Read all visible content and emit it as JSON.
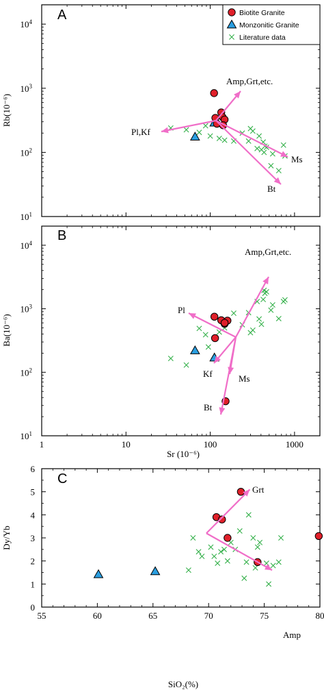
{
  "colors": {
    "biotite": "#e0202a",
    "monzonitic": "#2a9ee0",
    "literature": "#34b04a",
    "vector": "#f06ec8",
    "axis": "#000000"
  },
  "chart_data": [
    {
      "panel": "A",
      "type": "scatter",
      "xscale": "log",
      "yscale": "log",
      "xlim": [
        1,
        2000
      ],
      "ylim": [
        10,
        20000
      ],
      "xlabel": "",
      "ylabel": "Rb(10⁻⁶)",
      "y_ticks": [
        "10¹",
        "10²",
        "10³",
        "10⁴"
      ],
      "x_ticks": [],
      "legend": {
        "placement": "top-right",
        "entries": [
          "Biotite Granite",
          "Monzonitic Granite",
          "Literature data"
        ]
      },
      "series": [
        {
          "name": "Biotite Granite",
          "marker": "circle",
          "x": [
            111,
            115,
            135,
            140,
            148,
            120,
            142
          ],
          "y": [
            840,
            345,
            420,
            355,
            325,
            280,
            265
          ]
        },
        {
          "name": "Monzonitic Granite",
          "marker": "triangle",
          "x": [
            66,
            112
          ],
          "y": [
            175,
            290
          ]
        },
        {
          "name": "Literature data",
          "marker": "x",
          "x": [
            34,
            52,
            74,
            88,
            100,
            128,
            148,
            190,
            240,
            285,
            300,
            320,
            360,
            380,
            405,
            425,
            435,
            445,
            465,
            525,
            550,
            650,
            740,
            770
          ],
          "y": [
            240,
            225,
            205,
            260,
            180,
            165,
            155,
            150,
            200,
            150,
            235,
            215,
            115,
            180,
            110,
            145,
            100,
            125,
            120,
            62,
            95,
            52,
            130,
            88
          ]
        }
      ],
      "annotations": [
        "Amp,Grt,etc.",
        "Pl,Kf",
        "Ms",
        "Bt"
      ]
    },
    {
      "panel": "B",
      "type": "scatter",
      "xscale": "log",
      "yscale": "log",
      "xlim": [
        1,
        2000
      ],
      "ylim": [
        10,
        20000
      ],
      "xlabel": "Sr (10⁻⁶)",
      "ylabel": "Ba(10⁻⁶)",
      "y_ticks": [
        "10¹",
        "10²",
        "10³",
        "10⁴"
      ],
      "x_ticks": [
        "1",
        "10",
        "100",
        "1000"
      ],
      "series": [
        {
          "name": "Biotite Granite",
          "marker": "circle",
          "x": [
            112,
            135,
            148,
            160,
            152,
            114,
            148
          ],
          "y": [
            750,
            660,
            580,
            650,
            35,
            345,
            600
          ]
        },
        {
          "name": "Monzonitic Granite",
          "marker": "triangle",
          "x": [
            66,
            112
          ],
          "y": [
            220,
            170
          ]
        },
        {
          "name": "Literature data",
          "marker": "x",
          "x": [
            34,
            52,
            74,
            88,
            95,
            128,
            148,
            190,
            240,
            285,
            300,
            320,
            360,
            380,
            405,
            425,
            435,
            445,
            465,
            525,
            550,
            650,
            740,
            770
          ],
          "y": [
            165,
            130,
            490,
            390,
            250,
            430,
            500,
            850,
            560,
            870,
            420,
            460,
            1300,
            690,
            570,
            1400,
            1950,
            1750,
            1850,
            950,
            1150,
            700,
            1300,
            1380
          ]
        }
      ],
      "annotations": [
        "Amp,Grt,etc.",
        "Pl",
        "Kf",
        "Ms",
        "Bt"
      ]
    },
    {
      "panel": "C",
      "type": "scatter",
      "xscale": "linear",
      "yscale": "linear",
      "xlim": [
        55,
        80
      ],
      "ylim": [
        0,
        6
      ],
      "xlabel": "SiO₂(%)",
      "ylabel": "Dy/Yb",
      "x_ticks": [
        "55",
        "60",
        "65",
        "70",
        "75",
        "80"
      ],
      "y_ticks": [
        "0",
        "1",
        "2",
        "3",
        "4",
        "5",
        "6"
      ],
      "series": [
        {
          "name": "Biotite Granite",
          "marker": "circle",
          "x": [
            72.9,
            70.7,
            71.2,
            71.7,
            74.4,
            79.9
          ],
          "y": [
            5.0,
            3.9,
            3.8,
            3.0,
            1.95,
            3.08
          ]
        },
        {
          "name": "Monzonitic Granite",
          "marker": "triangle",
          "x": [
            60.1,
            65.2
          ],
          "y": [
            1.42,
            1.55
          ]
        },
        {
          "name": "Literature data",
          "marker": "x",
          "x": [
            68.2,
            68.6,
            69.1,
            69.4,
            70.2,
            70.5,
            70.8,
            71.1,
            71.4,
            71.7,
            72.0,
            72.4,
            72.8,
            73.2,
            73.4,
            73.6,
            74.0,
            74.2,
            74.4,
            74.6,
            75.2,
            75.4,
            75.8,
            76.3,
            76.5
          ],
          "y": [
            1.6,
            3.0,
            2.4,
            2.2,
            2.6,
            2.2,
            1.9,
            2.4,
            2.5,
            2.0,
            2.8,
            2.5,
            3.3,
            1.25,
            1.95,
            4.0,
            3.0,
            1.7,
            2.6,
            2.8,
            1.9,
            1.0,
            1.8,
            1.95,
            3.0
          ]
        }
      ],
      "annotations": [
        "Grt",
        "Amp"
      ]
    }
  ]
}
